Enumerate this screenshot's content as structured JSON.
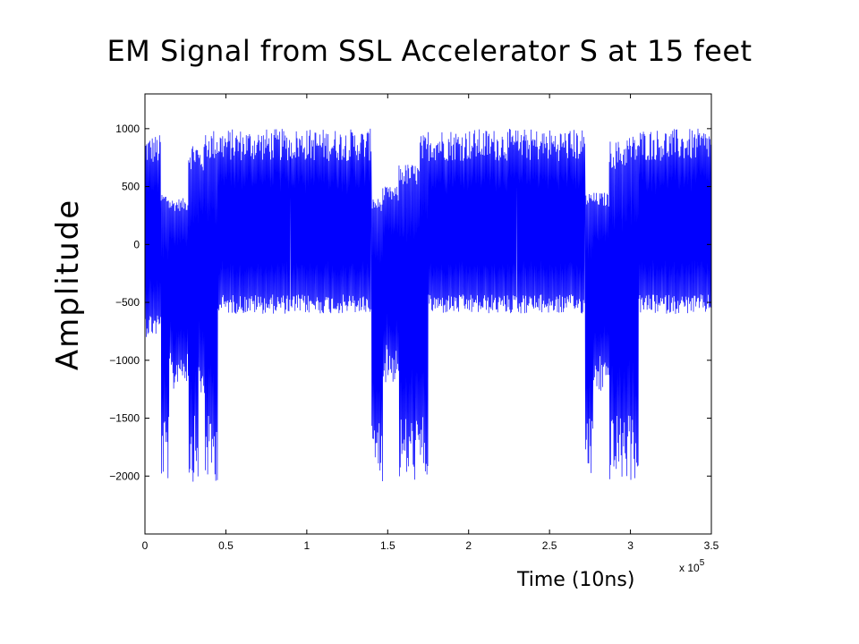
{
  "chart_data": {
    "type": "line",
    "title": "EM Signal from SSL Accelerator S at 15 feet",
    "xlabel": "Time (10ns)",
    "ylabel": "Amplitude",
    "x_scale_note": "x 10^5",
    "x_tick_labels": [
      "0",
      "0.5",
      "1",
      "1.5",
      "2",
      "2.5",
      "3",
      "3.5"
    ],
    "y_tick_labels": [
      "1000",
      "500",
      "0",
      "−500",
      "−1000",
      "−1500",
      "−2000"
    ],
    "x_ticks": [
      0,
      50000,
      100000,
      150000,
      200000,
      250000,
      300000,
      350000
    ],
    "y_ticks": [
      1000,
      500,
      0,
      -500,
      -1000,
      -1500,
      -2000
    ],
    "xlim": [
      0,
      350000
    ],
    "ylim": [
      -2500,
      1300
    ],
    "grid": false,
    "legend": "none",
    "series": [
      {
        "color": "#0000ff",
        "envelope": [
          {
            "x_start": 0,
            "x_end": 10000,
            "y_max": 950,
            "y_min": -800
          },
          {
            "x_start": 10000,
            "x_end": 15000,
            "y_max": 450,
            "y_min": -2050
          },
          {
            "x_start": 15000,
            "x_end": 20000,
            "y_max": 400,
            "y_min": -1300
          },
          {
            "x_start": 20000,
            "x_end": 27000,
            "y_max": 400,
            "y_min": -1200
          },
          {
            "x_start": 27000,
            "x_end": 33000,
            "y_max": 900,
            "y_min": -2050
          },
          {
            "x_start": 33000,
            "x_end": 37000,
            "y_max": 850,
            "y_min": -1400
          },
          {
            "x_start": 37000,
            "x_end": 45000,
            "y_max": 1000,
            "y_min": -2050
          },
          {
            "x_start": 45000,
            "x_end": 90000,
            "y_max": 1000,
            "y_min": -600
          },
          {
            "x_start": 90000,
            "x_end": 140000,
            "y_max": 1000,
            "y_min": -600
          },
          {
            "x_start": 140000,
            "x_end": 147000,
            "y_max": 400,
            "y_min": -2050
          },
          {
            "x_start": 147000,
            "x_end": 157000,
            "y_max": 500,
            "y_min": -1200
          },
          {
            "x_start": 157000,
            "x_end": 170000,
            "y_max": 700,
            "y_min": -2050
          },
          {
            "x_start": 170000,
            "x_end": 175000,
            "y_max": 950,
            "y_min": -2050
          },
          {
            "x_start": 175000,
            "x_end": 230000,
            "y_max": 1000,
            "y_min": -600
          },
          {
            "x_start": 230000,
            "x_end": 272000,
            "y_max": 1000,
            "y_min": -600
          },
          {
            "x_start": 272000,
            "x_end": 277000,
            "y_max": 450,
            "y_min": -2050
          },
          {
            "x_start": 277000,
            "x_end": 287000,
            "y_max": 450,
            "y_min": -1300
          },
          {
            "x_start": 287000,
            "x_end": 297000,
            "y_max": 900,
            "y_min": -2050
          },
          {
            "x_start": 297000,
            "x_end": 305000,
            "y_max": 950,
            "y_min": -2050
          },
          {
            "x_start": 305000,
            "x_end": 350000,
            "y_max": 1000,
            "y_min": -600
          }
        ]
      }
    ]
  }
}
